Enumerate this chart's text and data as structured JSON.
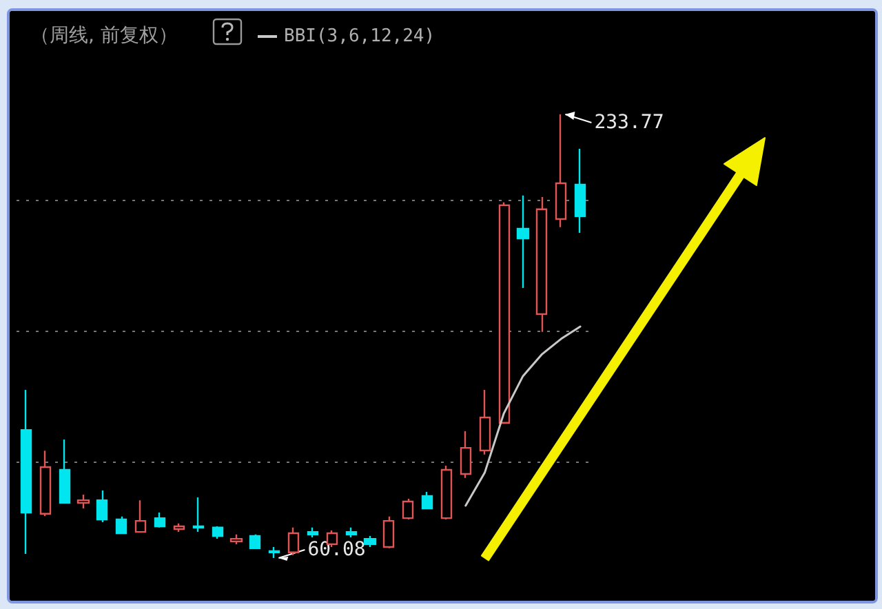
{
  "chart_data": {
    "type": "candlestick",
    "title": "（周线, 前复权）",
    "categories": [
      null,
      null,
      null,
      null,
      null,
      null,
      null,
      null,
      null,
      null,
      null,
      null,
      null,
      null,
      null,
      null,
      null,
      null,
      null,
      null,
      null,
      null,
      null,
      null,
      null,
      null,
      null,
      null,
      null,
      null
    ],
    "ohlc": [
      [
        110.2,
        125.9,
        61.7,
        77.9
      ],
      [
        77.4,
        102.1,
        76.5,
        95.7
      ],
      [
        94.6,
        106.5,
        81.7,
        81.7
      ],
      [
        81.7,
        84.9,
        79.5,
        82.7
      ],
      [
        82.7,
        86.5,
        74.1,
        75.2
      ],
      [
        75.2,
        76.3,
        69.8,
        69.8
      ],
      [
        70.3,
        82.7,
        70.3,
        74.6
      ],
      [
        75.7,
        77.9,
        72.0,
        72.5
      ],
      [
        71.4,
        73.6,
        70.3,
        72.5
      ],
      [
        72.5,
        83.8,
        70.3,
        72.0
      ],
      [
        72.0,
        72.5,
        67.6,
        68.7
      ],
      [
        66.6,
        69.3,
        65.5,
        67.6
      ],
      [
        68.7,
        69.3,
        63.9,
        63.9
      ],
      [
        62.8,
        64.4,
        60.08,
        62.3
      ],
      [
        62.3,
        72.0,
        61.2,
        69.8
      ],
      [
        70.3,
        72.0,
        68.2,
        69.3
      ],
      [
        65.5,
        70.9,
        64.4,
        69.8
      ],
      [
        70.3,
        72.0,
        68.2,
        69.3
      ],
      [
        67.6,
        68.7,
        64.4,
        65.5
      ],
      [
        64.4,
        76.3,
        63.9,
        74.6
      ],
      [
        75.7,
        83.3,
        75.2,
        82.2
      ],
      [
        84.4,
        86.0,
        79.5,
        79.5
      ],
      [
        75.7,
        96.2,
        75.2,
        94.6
      ],
      [
        93.0,
        109.7,
        91.4,
        103.2
      ],
      [
        102.2,
        125.9,
        100.6,
        115.1
      ],
      [
        113.0,
        199.3,
        113.0,
        198.2
      ],
      [
        189.0,
        202.0,
        165.8,
        185.2
      ],
      [
        155.6,
        201.4,
        148.6,
        196.6
      ],
      [
        192.8,
        233.77,
        189.6,
        206.8
      ],
      [
        206.3,
        220.3,
        187.4,
        193.9
      ]
    ],
    "colors": [
      "#00e5ee",
      "#e05555",
      "#00e5ee",
      "#e05555",
      "#00e5ee",
      "#00e5ee",
      "#e05555",
      "#00e5ee",
      "#e05555",
      "#00e5ee",
      "#00e5ee",
      "#e05555",
      "#00e5ee",
      "#00e5ee",
      "#e05555",
      "#00e5ee",
      "#e05555",
      "#00e5ee",
      "#00e5ee",
      "#e05555",
      "#e05555",
      "#00e5ee",
      "#e05555",
      "#e05555",
      "#e05555",
      "#e05555",
      "#00e5ee",
      "#e05555",
      "#e05555",
      "#00e5ee"
    ],
    "series": [
      {
        "type": "line",
        "name": "BBI(3,6,12,24)",
        "color": "#c8c8c8",
        "values": [
          null,
          null,
          null,
          null,
          null,
          null,
          null,
          null,
          null,
          null,
          null,
          null,
          null,
          null,
          null,
          null,
          null,
          null,
          null,
          null,
          null,
          null,
          null,
          80.6,
          93.5,
          116.7,
          131.3,
          139.9,
          145.9,
          150.7
        ]
      }
    ],
    "yticks": [
      {
        "value": 97.9,
        "label": null
      },
      {
        "value": 149.1,
        "label": null
      },
      {
        "value": 200.3,
        "label": null
      }
    ],
    "grid": "y",
    "tick_labels": false,
    "legend": "top",
    "line_style": "solid",
    "marker": "none",
    "annotations": [
      "233.77",
      "60.08"
    ]
  }
}
